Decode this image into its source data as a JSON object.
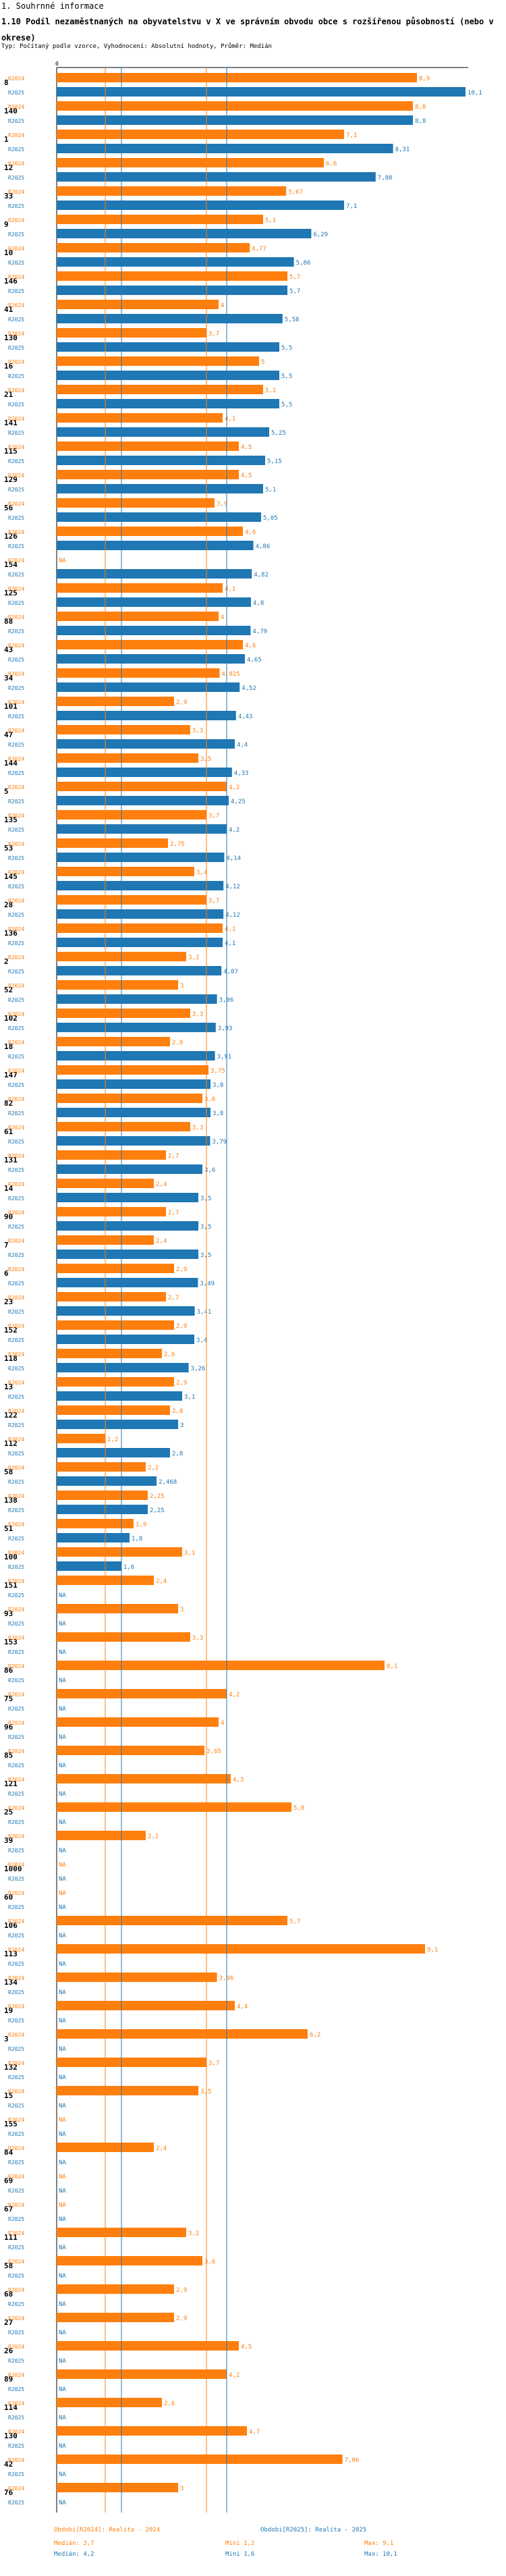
{
  "header": {
    "section": "1. Souhrnné informace",
    "title": "1.10 Podíl nezaměstnaných na obyvatelstvu v X ve správním obvodu obce s rozšířenou působností (nebo v okrese)",
    "subtitle": "Typ: Počítaný podle vzorce, Vyhodnocení: Absolutní hodnoty, Průměr: Medián"
  },
  "colors": {
    "orange": "#ff7f0e",
    "blue": "#1f77b4"
  },
  "chart_data": {
    "type": "bar",
    "orientation": "horizontal",
    "axis_top_tick": "0",
    "xlim": [
      0,
      10.1
    ],
    "na_label": "NA",
    "categories": [
      "8",
      "140",
      "1",
      "12",
      "33",
      "9",
      "10",
      "146",
      "41",
      "130",
      "16",
      "21",
      "141",
      "115",
      "129",
      "56",
      "126",
      "154",
      "125",
      "88",
      "43",
      "34",
      "101",
      "47",
      "144",
      "5",
      "135",
      "53",
      "145",
      "28",
      "136",
      "2",
      "52",
      "102",
      "18",
      "147",
      "82",
      "61",
      "131",
      "14",
      "90",
      "7",
      "6",
      "23",
      "152",
      "118",
      "13",
      "122",
      "112",
      "58",
      "138",
      "51",
      "100",
      "151",
      "93",
      "153",
      "86",
      "75",
      "96",
      "85",
      "121",
      "25",
      "39",
      "1000",
      "60",
      "106",
      "113",
      "134",
      "19",
      "3",
      "132",
      "15",
      "155",
      "84",
      "69",
      "67",
      "111",
      "58",
      "68",
      "27",
      "26",
      "89",
      "114",
      "130",
      "42",
      "76"
    ],
    "series": [
      {
        "name": "R2024",
        "values": [
          8.9,
          8.8,
          7.1,
          6.6,
          5.67,
          5.1,
          4.77,
          5.7,
          4.0,
          3.7,
          5.0,
          5.1,
          4.1,
          4.5,
          4.5,
          3.9,
          4.6,
          null,
          4.1,
          4.0,
          4.6,
          4.025,
          2.9,
          3.3,
          3.5,
          4.2,
          3.7,
          2.75,
          3.4,
          3.7,
          4.1,
          3.2,
          3.0,
          3.3,
          2.8,
          3.75,
          3.6,
          3.3,
          2.7,
          2.4,
          2.7,
          2.4,
          2.9,
          2.7,
          2.9,
          2.6,
          2.9,
          2.8,
          1.2,
          2.2,
          2.25,
          1.9,
          3.1,
          2.4,
          3.0,
          3.3,
          8.1,
          4.2,
          4.0,
          3.65,
          4.3,
          5.8,
          2.2,
          null,
          null,
          5.7,
          9.1,
          3.96,
          4.4,
          6.2,
          3.7,
          3.5,
          null,
          2.4,
          null,
          null,
          3.2,
          3.6,
          2.9,
          2.9,
          4.5,
          4.2,
          2.6,
          4.7,
          7.06,
          3.0
        ]
      },
      {
        "name": "R2025",
        "values": [
          10.1,
          8.8,
          8.31,
          7.88,
          7.1,
          6.29,
          5.86,
          5.7,
          5.58,
          5.5,
          5.5,
          5.5,
          5.25,
          5.15,
          5.1,
          5.05,
          4.86,
          4.82,
          4.8,
          4.79,
          4.65,
          4.52,
          4.43,
          4.4,
          4.33,
          4.25,
          4.2,
          4.14,
          4.12,
          4.12,
          4.1,
          4.07,
          3.96,
          3.93,
          3.91,
          3.8,
          3.8,
          3.79,
          3.6,
          3.5,
          3.5,
          3.5,
          3.49,
          3.41,
          3.4,
          3.26,
          3.1,
          3.0,
          2.8,
          2.468,
          2.25,
          1.8,
          1.6,
          null,
          null,
          null,
          null,
          null,
          null,
          null,
          null,
          null,
          null,
          null,
          null,
          null,
          null,
          null,
          null,
          null,
          null,
          null,
          null,
          null,
          null,
          null,
          null,
          null,
          null,
          null,
          null,
          null,
          null,
          null,
          null,
          null
        ]
      }
    ],
    "reference_lines": {
      "median_2024": 3.7,
      "median_2025": 4.2,
      "min_2024": 1.2,
      "min_2025": 1.6
    },
    "legend": {
      "position": "bottom",
      "rows": [
        [
          "Obdobi[R2024]: Realita - 2024",
          "Obdobi[R2025]: Realita - 2025"
        ],
        [
          "Medián: 3,7",
          "Mini 1,2",
          "Max: 9,1"
        ],
        [
          "Medián: 4,2",
          "Mini 1,6",
          "Max: 10,1"
        ]
      ]
    }
  }
}
